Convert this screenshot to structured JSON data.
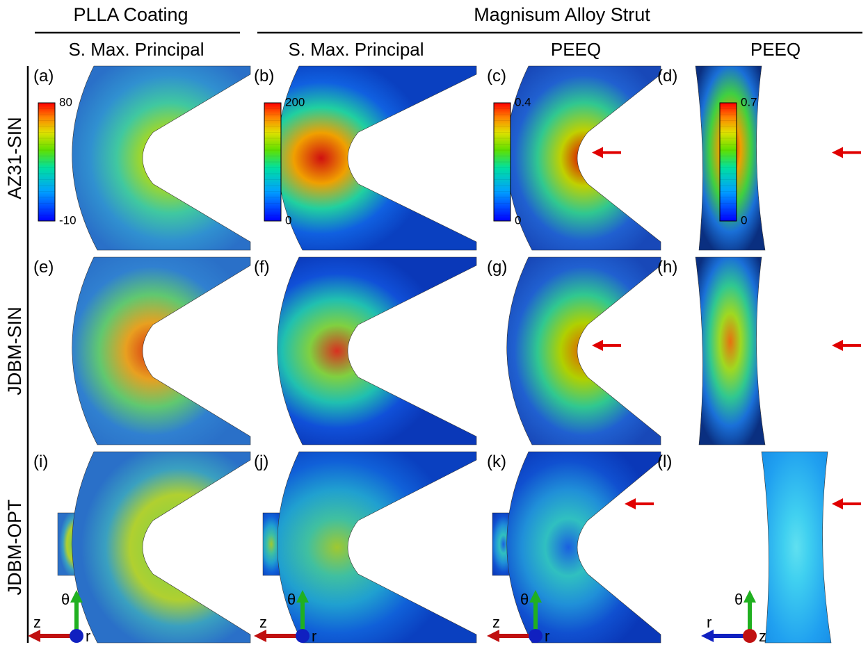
{
  "headers": {
    "coating": "PLLA Coating",
    "strut": "Magnisum Alloy Strut"
  },
  "columns": [
    "S. Max. Principal",
    "S. Max. Principal",
    "PEEQ",
    "PEEQ"
  ],
  "rows": [
    "AZ31-SIN",
    "JDBM-SIN",
    "JDBM-OPT"
  ],
  "panels": [
    "(a)",
    "(b)",
    "(c)",
    "(d)",
    "(e)",
    "(f)",
    "(g)",
    "(h)",
    "(i)",
    "(j)",
    "(k)",
    "(l)"
  ],
  "colorbars": [
    {
      "max": 80,
      "min": -10
    },
    {
      "max": 200,
      "min": 0
    },
    {
      "max": 0.4,
      "min": 0
    },
    {
      "max": 0.7,
      "min": 0
    }
  ],
  "axes": [
    {
      "horizontal": "z",
      "vertical": "θ",
      "normal": "r"
    },
    {
      "horizontal": "z",
      "vertical": "θ",
      "normal": "r"
    },
    {
      "horizontal": "z",
      "vertical": "θ",
      "normal": "r"
    },
    {
      "horizontal": "r",
      "vertical": "θ",
      "normal": "z"
    }
  ]
}
